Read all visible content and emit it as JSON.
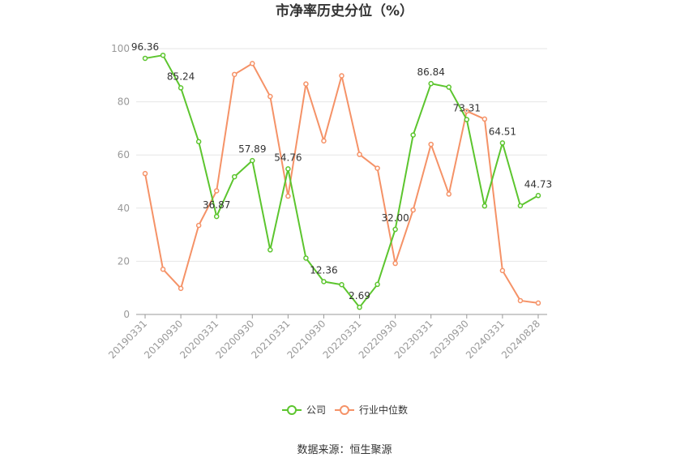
{
  "title": "市净率历史分位（%）",
  "source_text": "数据来源：恒生聚源",
  "colors": {
    "company": "#5cc52e",
    "industry": "#f59267",
    "grid": "#e6e6e6",
    "axis": "#999999"
  },
  "chart_data": {
    "type": "line",
    "title": "市净率历史分位（%）",
    "x": [
      "20190331",
      "20190630",
      "20190930",
      "20191231",
      "20200331",
      "20200630",
      "20200930",
      "20201231",
      "20210331",
      "20210630",
      "20210930",
      "20211231",
      "20220331",
      "20220630",
      "20220930",
      "20221231",
      "20230331",
      "20230630",
      "20230930",
      "20231231",
      "20240331",
      "20240630",
      "20240828"
    ],
    "x_tick_labels": [
      "20190331",
      "20190930",
      "20200331",
      "20200930",
      "20210331",
      "20210930",
      "20220331",
      "20220930",
      "20230331",
      "20230930",
      "20240331",
      "20240828"
    ],
    "ylim": [
      0,
      100
    ],
    "yticks": [
      0,
      20,
      40,
      60,
      80,
      100
    ],
    "grid": true,
    "legend_position": "bottom",
    "series": [
      {
        "name": "公司",
        "color": "#5cc52e",
        "values": [
          96.36,
          97.5,
          85.24,
          65.0,
          36.87,
          51.8,
          57.89,
          24.3,
          54.76,
          21.2,
          12.36,
          11.2,
          2.69,
          11.3,
          32.0,
          67.5,
          86.84,
          85.5,
          73.31,
          40.8,
          64.51,
          40.9,
          44.73
        ]
      },
      {
        "name": "行业中位数",
        "color": "#f59267",
        "values": [
          53.0,
          17.0,
          9.8,
          33.5,
          46.5,
          90.3,
          94.4,
          82.0,
          44.5,
          86.7,
          65.3,
          89.8,
          60.2,
          55.0,
          19.2,
          39.3,
          64.0,
          45.3,
          76.5,
          73.5,
          16.5,
          5.2,
          4.3
        ]
      }
    ],
    "data_labels": [
      {
        "index": 0,
        "text": "96.36"
      },
      {
        "index": 2,
        "text": "85.24"
      },
      {
        "index": 4,
        "text": "36.87"
      },
      {
        "index": 6,
        "text": "57.89"
      },
      {
        "index": 8,
        "text": "54.76"
      },
      {
        "index": 10,
        "text": "12.36"
      },
      {
        "index": 12,
        "text": "2.69"
      },
      {
        "index": 14,
        "text": "32.00"
      },
      {
        "index": 16,
        "text": "86.84"
      },
      {
        "index": 18,
        "text": "73.31"
      },
      {
        "index": 20,
        "text": "64.51"
      },
      {
        "index": 22,
        "text": "44.73"
      }
    ]
  }
}
